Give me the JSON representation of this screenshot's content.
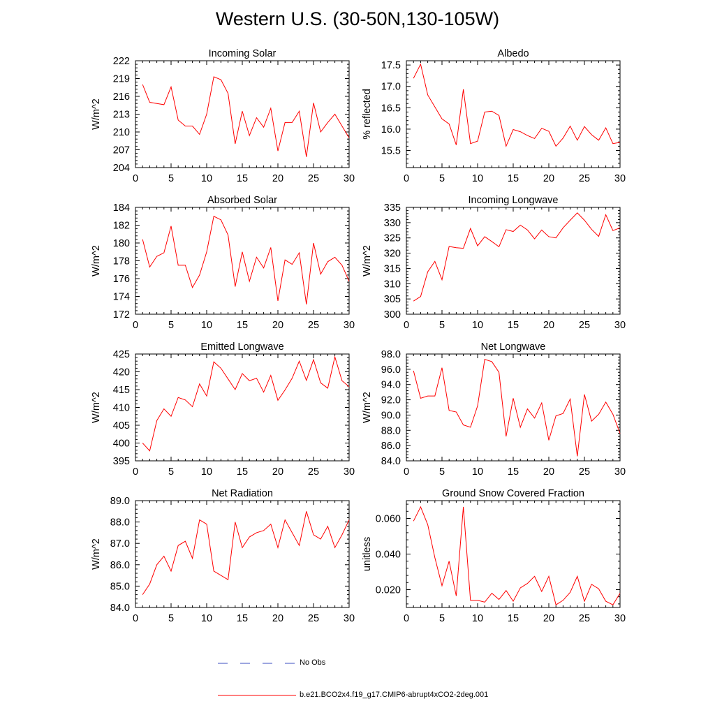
{
  "title": "Western U.S. (30-50N,130-105W)",
  "legend": {
    "entries": [
      {
        "label": "No Obs",
        "style": "dashed",
        "color": "#3b4cc0"
      },
      {
        "label": "b.e21.BCO2x4.f19_g17.CMIP6-abrupt4xCO2-2deg.001",
        "style": "solid",
        "color": "#ff0000"
      }
    ]
  },
  "chart_data": [
    {
      "type": "line",
      "title": "Incoming Solar",
      "ylabel": "W/m^2",
      "xlim": [
        0,
        30
      ],
      "ylim": [
        204,
        222
      ],
      "xticks": [
        "0",
        "5",
        "10",
        "15",
        "20",
        "25",
        "30"
      ],
      "yticks": [
        "204",
        "207",
        "210",
        "213",
        "216",
        "219",
        "222"
      ],
      "series": [
        {
          "color": "#ff0000",
          "x": [
            1,
            2,
            3,
            4,
            5,
            6,
            7,
            8,
            9,
            10,
            11,
            12,
            13,
            14,
            15,
            16,
            17,
            18,
            19,
            20,
            21,
            22,
            23,
            24,
            25,
            26,
            27,
            28,
            29,
            30
          ],
          "values": [
            218.0,
            215.0,
            214.8,
            214.6,
            217.6,
            212.0,
            211.0,
            211.0,
            209.6,
            213.0,
            219.3,
            218.8,
            216.5,
            208.0,
            213.5,
            209.4,
            212.4,
            210.8,
            214.0,
            206.8,
            211.6,
            211.6,
            213.5,
            205.8,
            214.9,
            210.0,
            211.6,
            213.0,
            211.0,
            209.0
          ]
        }
      ]
    },
    {
      "type": "line",
      "title": "Albedo",
      "ylabel": "% reflected",
      "xlim": [
        0,
        30
      ],
      "ylim": [
        15.1,
        17.6
      ],
      "xticks": [
        "0",
        "5",
        "10",
        "15",
        "20",
        "25",
        "30"
      ],
      "yticks": [
        "15.5",
        "16.0",
        "16.5",
        "17.0",
        "17.5"
      ],
      "series": [
        {
          "color": "#ff0000",
          "x": [
            1,
            2,
            3,
            4,
            5,
            6,
            7,
            8,
            9,
            10,
            11,
            12,
            13,
            14,
            15,
            16,
            17,
            18,
            19,
            20,
            21,
            22,
            23,
            24,
            25,
            26,
            27,
            28,
            29,
            30
          ],
          "values": [
            17.19,
            17.52,
            16.8,
            16.52,
            16.24,
            16.12,
            15.63,
            16.93,
            15.66,
            15.72,
            16.4,
            16.42,
            16.32,
            15.6,
            15.99,
            15.94,
            15.85,
            15.78,
            16.02,
            15.95,
            15.6,
            15.79,
            16.07,
            15.74,
            16.06,
            15.87,
            15.74,
            16.03,
            15.66,
            15.69
          ]
        }
      ]
    },
    {
      "type": "line",
      "title": "Absorbed Solar",
      "ylabel": "W/m^2",
      "xlim": [
        0,
        30
      ],
      "ylim": [
        172,
        184
      ],
      "xticks": [
        "0",
        "5",
        "10",
        "15",
        "20",
        "25",
        "30"
      ],
      "yticks": [
        "172",
        "174",
        "176",
        "178",
        "180",
        "182",
        "184"
      ],
      "series": [
        {
          "color": "#ff0000",
          "x": [
            1,
            2,
            3,
            4,
            5,
            6,
            7,
            8,
            9,
            10,
            11,
            12,
            13,
            14,
            15,
            16,
            17,
            18,
            19,
            20,
            21,
            22,
            23,
            24,
            25,
            26,
            27,
            28,
            29,
            30
          ],
          "values": [
            180.4,
            177.3,
            178.5,
            178.9,
            181.9,
            177.5,
            177.5,
            175.0,
            176.4,
            179.0,
            183.0,
            182.6,
            180.9,
            175.1,
            179.0,
            175.7,
            178.4,
            177.2,
            179.5,
            173.5,
            178.1,
            177.6,
            178.9,
            173.1,
            180.0,
            176.5,
            177.9,
            178.4,
            177.5,
            175.7
          ]
        }
      ]
    },
    {
      "type": "line",
      "title": "Incoming Longwave",
      "ylabel": "W/m^2",
      "xlim": [
        0,
        30
      ],
      "ylim": [
        300,
        335
      ],
      "xticks": [
        "0",
        "5",
        "10",
        "15",
        "20",
        "25",
        "30"
      ],
      "yticks": [
        "300",
        "305",
        "310",
        "315",
        "320",
        "325",
        "330",
        "335"
      ],
      "series": [
        {
          "color": "#ff0000",
          "x": [
            1,
            2,
            3,
            4,
            5,
            6,
            7,
            8,
            9,
            10,
            11,
            12,
            13,
            14,
            15,
            16,
            17,
            18,
            19,
            20,
            21,
            22,
            23,
            24,
            25,
            26,
            27,
            28,
            29,
            30
          ],
          "values": [
            304.3,
            305.8,
            313.9,
            317.3,
            311.3,
            322.2,
            321.8,
            321.6,
            328.1,
            322.4,
            325.4,
            323.8,
            322.1,
            327.7,
            327.1,
            329.2,
            327.6,
            324.7,
            327.6,
            325.4,
            325.0,
            328.3,
            330.8,
            333.2,
            330.8,
            327.8,
            325.5,
            332.6,
            327.4,
            328.3
          ]
        }
      ]
    },
    {
      "type": "line",
      "title": "Emitted Longwave",
      "ylabel": "W/m^2",
      "xlim": [
        0,
        30
      ],
      "ylim": [
        395,
        425
      ],
      "xticks": [
        "0",
        "5",
        "10",
        "15",
        "20",
        "25",
        "30"
      ],
      "yticks": [
        "395",
        "400",
        "405",
        "410",
        "415",
        "420",
        "425"
      ],
      "series": [
        {
          "color": "#ff0000",
          "x": [
            1,
            2,
            3,
            4,
            5,
            6,
            7,
            8,
            9,
            10,
            11,
            12,
            13,
            14,
            15,
            16,
            17,
            18,
            19,
            20,
            21,
            22,
            23,
            24,
            25,
            26,
            27,
            28,
            29,
            30
          ],
          "values": [
            400.0,
            397.8,
            406.3,
            409.6,
            407.5,
            412.8,
            412.1,
            410.2,
            416.6,
            413.2,
            422.8,
            421.0,
            418.0,
            415.0,
            419.5,
            417.5,
            418.2,
            414.3,
            419.0,
            412.0,
            414.9,
            418.2,
            423.0,
            417.6,
            423.4,
            416.9,
            415.4,
            424.2,
            417.5,
            415.8
          ]
        }
      ]
    },
    {
      "type": "line",
      "title": "Net Longwave",
      "ylabel": "W/m^2",
      "xlim": [
        0,
        30
      ],
      "ylim": [
        84,
        98
      ],
      "xticks": [
        "0",
        "5",
        "10",
        "15",
        "20",
        "25",
        "30"
      ],
      "yticks": [
        "84.0",
        "86.0",
        "88.0",
        "90.0",
        "92.0",
        "94.0",
        "96.0",
        "98.0"
      ],
      "series": [
        {
          "color": "#ff0000",
          "x": [
            1,
            2,
            3,
            4,
            5,
            6,
            7,
            8,
            9,
            10,
            11,
            12,
            13,
            14,
            15,
            16,
            17,
            18,
            19,
            20,
            21,
            22,
            23,
            24,
            25,
            26,
            27,
            28,
            29,
            30
          ],
          "values": [
            95.8,
            92.2,
            92.5,
            92.5,
            96.2,
            90.6,
            90.4,
            88.7,
            88.4,
            91.2,
            97.3,
            97.0,
            95.6,
            87.2,
            92.2,
            88.4,
            90.8,
            89.6,
            91.6,
            86.7,
            89.9,
            90.2,
            92.1,
            84.6,
            92.7,
            89.2,
            90.1,
            91.7,
            90.1,
            87.6
          ]
        }
      ]
    },
    {
      "type": "line",
      "title": "Net Radiation",
      "ylabel": "W/m^2",
      "xlim": [
        0,
        30
      ],
      "ylim": [
        84,
        89
      ],
      "xticks": [
        "0",
        "5",
        "10",
        "15",
        "20",
        "25",
        "30"
      ],
      "yticks": [
        "84.0",
        "85.0",
        "86.0",
        "87.0",
        "88.0",
        "89.0"
      ],
      "series": [
        {
          "color": "#ff0000",
          "x": [
            1,
            2,
            3,
            4,
            5,
            6,
            7,
            8,
            9,
            10,
            11,
            12,
            13,
            14,
            15,
            16,
            17,
            18,
            19,
            20,
            21,
            22,
            23,
            24,
            25,
            26,
            27,
            28,
            29,
            30
          ],
          "values": [
            84.6,
            85.1,
            86.0,
            86.4,
            85.7,
            86.9,
            87.1,
            86.3,
            88.1,
            87.9,
            85.7,
            85.5,
            85.3,
            88.0,
            86.8,
            87.3,
            87.5,
            87.6,
            87.9,
            86.8,
            88.1,
            87.5,
            86.9,
            88.5,
            87.4,
            87.2,
            87.8,
            86.8,
            87.4,
            88.1
          ]
        }
      ]
    },
    {
      "type": "line",
      "title": "Ground Snow Covered Fraction",
      "ylabel": "unitless",
      "xlim": [
        0,
        30
      ],
      "ylim": [
        0.01,
        0.07
      ],
      "xticks": [
        "0",
        "5",
        "10",
        "15",
        "20",
        "25",
        "30"
      ],
      "yticks": [
        "0.020",
        "0.040",
        "0.060"
      ],
      "series": [
        {
          "color": "#ff0000",
          "x": [
            1,
            2,
            3,
            4,
            5,
            6,
            7,
            8,
            9,
            10,
            11,
            12,
            13,
            14,
            15,
            16,
            17,
            18,
            19,
            20,
            21,
            22,
            23,
            24,
            25,
            26,
            27,
            28,
            29,
            30
          ],
          "values": [
            0.0585,
            0.0665,
            0.0565,
            0.038,
            0.0222,
            0.036,
            0.0165,
            0.0665,
            0.014,
            0.014,
            0.013,
            0.018,
            0.0145,
            0.0195,
            0.0135,
            0.021,
            0.0235,
            0.0275,
            0.019,
            0.0275,
            0.0115,
            0.014,
            0.0185,
            0.0275,
            0.0135,
            0.023,
            0.0205,
            0.0135,
            0.0115,
            0.018
          ]
        }
      ]
    }
  ]
}
